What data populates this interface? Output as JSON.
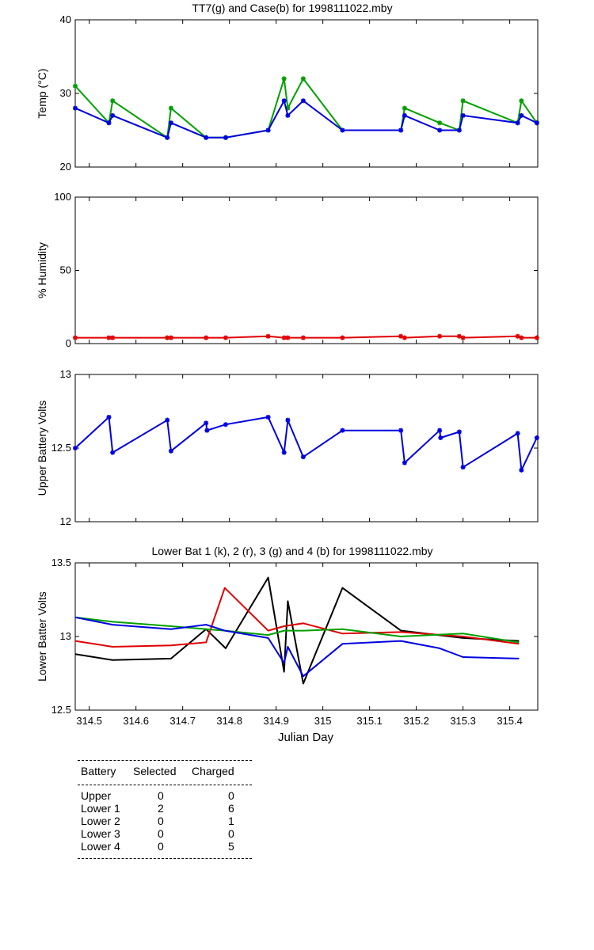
{
  "chart_data": [
    {
      "type": "line",
      "title": "TT7(g) and Case(b) for 1998111022.mby",
      "xlabel": "",
      "ylabel": "Temp  (°C)",
      "xlim": [
        314.47,
        315.46
      ],
      "ylim": [
        20,
        40
      ],
      "yticks": [
        20,
        30,
        40
      ],
      "grid": false,
      "series": [
        {
          "color": "#00a000",
          "markers": true,
          "x": [
            314.47,
            314.542,
            314.55,
            314.667,
            314.675,
            314.75,
            314.792,
            314.883,
            314.917,
            314.925,
            314.958,
            315.042,
            315.167,
            315.175,
            315.25,
            315.292,
            315.3,
            315.417,
            315.425,
            315.458
          ],
          "y": [
            31,
            26,
            29,
            24,
            28,
            24,
            24,
            25,
            32,
            28,
            32,
            25,
            25,
            28,
            26,
            25,
            29,
            26,
            29,
            26
          ]
        },
        {
          "color": "#0000e0",
          "markers": true,
          "x": [
            314.47,
            314.542,
            314.55,
            314.667,
            314.675,
            314.75,
            314.792,
            314.883,
            314.917,
            314.925,
            314.958,
            315.042,
            315.167,
            315.175,
            315.25,
            315.292,
            315.3,
            315.417,
            315.425,
            315.458
          ],
          "y": [
            28,
            26,
            27,
            24,
            26,
            24,
            24,
            25,
            29,
            27,
            29,
            25,
            25,
            27,
            25,
            25,
            27,
            26,
            27,
            26
          ]
        }
      ]
    },
    {
      "type": "line",
      "title": "",
      "xlabel": "",
      "ylabel": "% Humidity",
      "xlim": [
        314.47,
        315.46
      ],
      "ylim": [
        0,
        100
      ],
      "yticks": [
        0,
        50,
        100
      ],
      "grid": false,
      "series": [
        {
          "color": "#e00000",
          "markers": true,
          "x": [
            314.47,
            314.542,
            314.55,
            314.667,
            314.675,
            314.75,
            314.792,
            314.883,
            314.917,
            314.925,
            314.958,
            315.042,
            315.167,
            315.175,
            315.25,
            315.292,
            315.3,
            315.417,
            315.425,
            315.458
          ],
          "y": [
            4,
            4,
            4,
            4,
            4,
            4,
            4,
            5,
            4,
            4,
            4,
            4,
            5,
            4,
            5,
            5,
            4,
            5,
            4,
            4
          ]
        }
      ]
    },
    {
      "type": "line",
      "title": "",
      "xlabel": "",
      "ylabel": "Upper Battery Volts",
      "xlim": [
        314.47,
        315.46
      ],
      "ylim": [
        12,
        13
      ],
      "yticks": [
        12,
        12.5,
        13
      ],
      "ytick_labels": [
        "12",
        "12.5",
        "13"
      ],
      "grid": false,
      "series": [
        {
          "color": "#0000e0",
          "markers": true,
          "x": [
            314.47,
            314.542,
            314.55,
            314.667,
            314.675,
            314.75,
            314.752,
            314.792,
            314.883,
            314.917,
            314.925,
            314.958,
            315.042,
            315.167,
            315.175,
            315.25,
            315.252,
            315.292,
            315.3,
            315.417,
            315.425,
            315.458
          ],
          "y": [
            12.5,
            12.71,
            12.47,
            12.69,
            12.48,
            12.67,
            12.62,
            12.66,
            12.71,
            12.47,
            12.69,
            12.44,
            12.62,
            12.62,
            12.4,
            12.62,
            12.57,
            12.61,
            12.37,
            12.6,
            12.35,
            12.57
          ]
        }
      ]
    },
    {
      "type": "line",
      "title": "Lower Bat 1 (k), 2 (r), 3 (g) and 4 (b) for 1998111022.mby",
      "xlabel": "Julian Day",
      "ylabel": "Lower Batter Volts",
      "xlim": [
        314.47,
        315.46
      ],
      "ylim": [
        12.5,
        13.5
      ],
      "yticks": [
        12.5,
        13,
        13.5
      ],
      "ytick_labels": [
        "12.5",
        "13",
        "13.5"
      ],
      "xticks": [
        314.5,
        314.6,
        314.7,
        314.8,
        314.9,
        315,
        315.1,
        315.2,
        315.3,
        315.4
      ],
      "xtick_labels": [
        "314.5",
        "314.6",
        "314.7",
        "314.8",
        "314.9",
        "315",
        "315.1",
        "315.2",
        "315.3",
        "315.4"
      ],
      "grid": false,
      "series": [
        {
          "color": "#000000",
          "markers": false,
          "x": [
            314.47,
            314.55,
            314.675,
            314.75,
            314.792,
            314.883,
            314.917,
            314.925,
            314.958,
            315.042,
            315.167,
            315.3,
            315.42
          ],
          "y": [
            12.88,
            12.84,
            12.85,
            13.05,
            12.92,
            13.4,
            12.76,
            13.24,
            12.68,
            13.33,
            13.04,
            12.99,
            12.97
          ]
        },
        {
          "color": "#e00000",
          "markers": false,
          "x": [
            314.47,
            314.55,
            314.675,
            314.75,
            314.79,
            314.883,
            314.917,
            314.958,
            315.042,
            315.167,
            315.3,
            315.42
          ],
          "y": [
            12.97,
            12.93,
            12.94,
            12.96,
            13.33,
            13.04,
            13.07,
            13.09,
            13.02,
            13.03,
            13.0,
            12.95
          ]
        },
        {
          "color": "#00a000",
          "markers": false,
          "x": [
            314.47,
            314.55,
            314.675,
            314.75,
            314.79,
            314.883,
            314.917,
            314.958,
            315.042,
            315.167,
            315.3,
            315.42
          ],
          "y": [
            13.13,
            13.1,
            13.07,
            13.05,
            13.04,
            13.01,
            13.04,
            13.04,
            13.05,
            13.0,
            13.02,
            12.96
          ]
        },
        {
          "color": "#0000e0",
          "markers": false,
          "x": [
            314.47,
            314.55,
            314.675,
            314.75,
            314.79,
            314.883,
            314.917,
            314.925,
            314.958,
            315.042,
            315.167,
            315.25,
            315.3,
            315.42
          ],
          "y": [
            13.13,
            13.08,
            13.05,
            13.08,
            13.04,
            12.99,
            12.82,
            12.93,
            12.73,
            12.95,
            12.97,
            12.92,
            12.86,
            12.85
          ]
        }
      ]
    }
  ],
  "table": {
    "headers": [
      "Battery",
      "Selected",
      "Charged"
    ],
    "rows": [
      {
        "battery": "Upper",
        "selected": "0",
        "charged": "0"
      },
      {
        "battery": "Lower 1",
        "selected": "2",
        "charged": "6"
      },
      {
        "battery": "Lower 2",
        "selected": "0",
        "charged": "1"
      },
      {
        "battery": "Lower 3",
        "selected": "0",
        "charged": "0"
      },
      {
        "battery": "Lower 4",
        "selected": "0",
        "charged": "5"
      }
    ]
  }
}
